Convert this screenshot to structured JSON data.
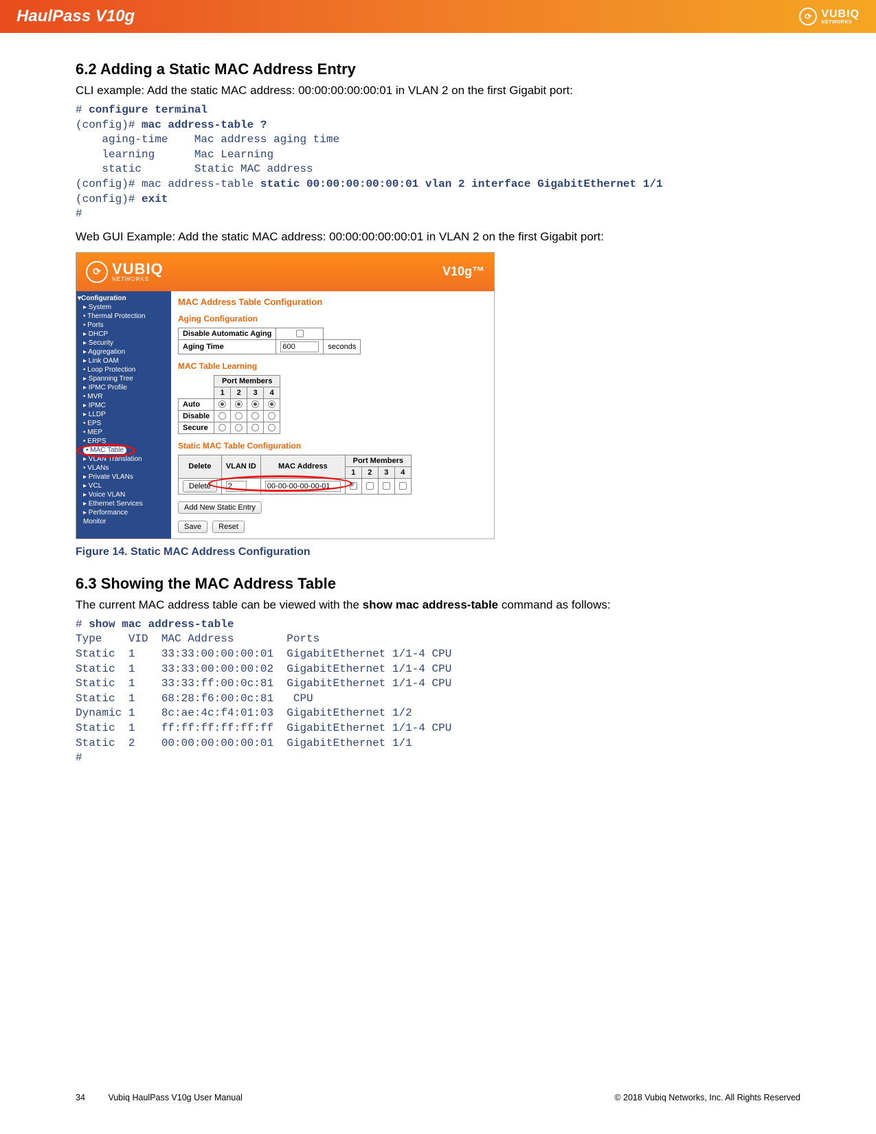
{
  "header": {
    "product": "HaulPass V10g",
    "brand_main": "VUBIQ",
    "brand_sub": "NETWORKS",
    "bg_gradient": [
      "#e84c1e",
      "#f07c28",
      "#f5a623"
    ]
  },
  "section62": {
    "heading": "6.2    Adding a Static MAC Address Entry",
    "intro": "CLI example: Add the static MAC address: 00:00:00:00:00:01 in VLAN 2 on the first Gigabit port:",
    "cli_prefix1": "# ",
    "cli_cmd1": "configure terminal",
    "cli_prefix2": "(config)# ",
    "cli_cmd2": "mac address-table ?",
    "cli_opt1": "    aging-time    Mac address aging time",
    "cli_opt2": "    learning      Mac Learning",
    "cli_opt3": "    static        Static MAC address",
    "cli_prefix3": "(config)# mac address-table ",
    "cli_cmd3": "static 00:00:00:00:00:01 vlan 2 interface GigabitEthernet 1/1",
    "cli_prefix4": "(config)# ",
    "cli_cmd4": "exit",
    "cli_end": "#",
    "web_intro": "Web GUI Example: Add the static MAC address: 00:00:00:00:00:01 in VLAN 2 on the first Gigabit port:"
  },
  "gui": {
    "brand_main": "VUBIQ",
    "brand_sub": "NETWORKS",
    "model": "V10g™",
    "sidebar_top": "▾Configuration",
    "sidebar": [
      "▸ System",
      "• Thermal Protection",
      "• Ports",
      "▸ DHCP",
      "▸ Security",
      "▸ Aggregation",
      "▸ Link OAM",
      "• Loop Protection",
      "▸ Spanning Tree",
      "▸ IPMC Profile",
      "• MVR",
      "▸ IPMC",
      "▸ LLDP",
      "• EPS",
      "• MEP",
      "• ERPS",
      "• MAC Table",
      "▸ VLAN Translation",
      "• VLANs",
      "▸ Private VLANs",
      "▸ VCL",
      "▸ Voice VLAN",
      "▸ Ethernet Services",
      "▸ Performance",
      "   Monitor"
    ],
    "main_title": "MAC Address Table Configuration",
    "aging_title": "Aging Configuration",
    "aging_rows": {
      "disable_label": "Disable Automatic Aging",
      "time_label": "Aging Time",
      "time_value": "600",
      "time_unit": "seconds"
    },
    "learning_title": "MAC Table Learning",
    "port_members_label": "Port Members",
    "port_cols": [
      "1",
      "2",
      "3",
      "4"
    ],
    "learn_rows": [
      "Auto",
      "Disable",
      "Secure"
    ],
    "static_title": "Static MAC Table Configuration",
    "static_headers": [
      "Delete",
      "VLAN ID",
      "MAC Address"
    ],
    "static_row": {
      "delete_btn": "Delete",
      "vlan": "2",
      "mac": "00-00-00-00-00-01",
      "checks": [
        true,
        false,
        false,
        false
      ]
    },
    "add_btn": "Add New Static Entry",
    "save_btn": "Save",
    "reset_btn": "Reset"
  },
  "figure_caption": "Figure 14. Static MAC Address Configuration",
  "section63": {
    "heading": "6.3    Showing the MAC Address Table",
    "intro_pre": "The current MAC address table can be viewed with the ",
    "intro_bold": "show mac address-table",
    "intro_post": " command as follows:",
    "cli_prefix": "# ",
    "cli_cmd": "show mac address-table",
    "table_header": "Type    VID  MAC Address        Ports",
    "rows": [
      "Static  1    33:33:00:00:00:01  GigabitEthernet 1/1-4 CPU",
      "Static  1    33:33:00:00:00:02  GigabitEthernet 1/1-4 CPU",
      "Static  1    33:33:ff:00:0c:81  GigabitEthernet 1/1-4 CPU",
      "Static  1    68:28:f6:00:0c:81   CPU",
      "Dynamic 1    8c:ae:4c:f4:01:03  GigabitEthernet 1/2",
      "Static  1    ff:ff:ff:ff:ff:ff  GigabitEthernet 1/1-4 CPU",
      "Static  2    00:00:00:00:00:01  GigabitEthernet 1/1"
    ],
    "cli_end": "#"
  },
  "footer": {
    "page": "34",
    "manual": "Vubiq HaulPass V10g User Manual",
    "copyright": "© 2018 Vubiq Networks, Inc. All Rights Reserved"
  },
  "colors": {
    "code": "#2d4576",
    "sidebar_bg": "#2a4a8a",
    "gui_orange": "#e86a0f",
    "red_highlight": "#e11"
  }
}
